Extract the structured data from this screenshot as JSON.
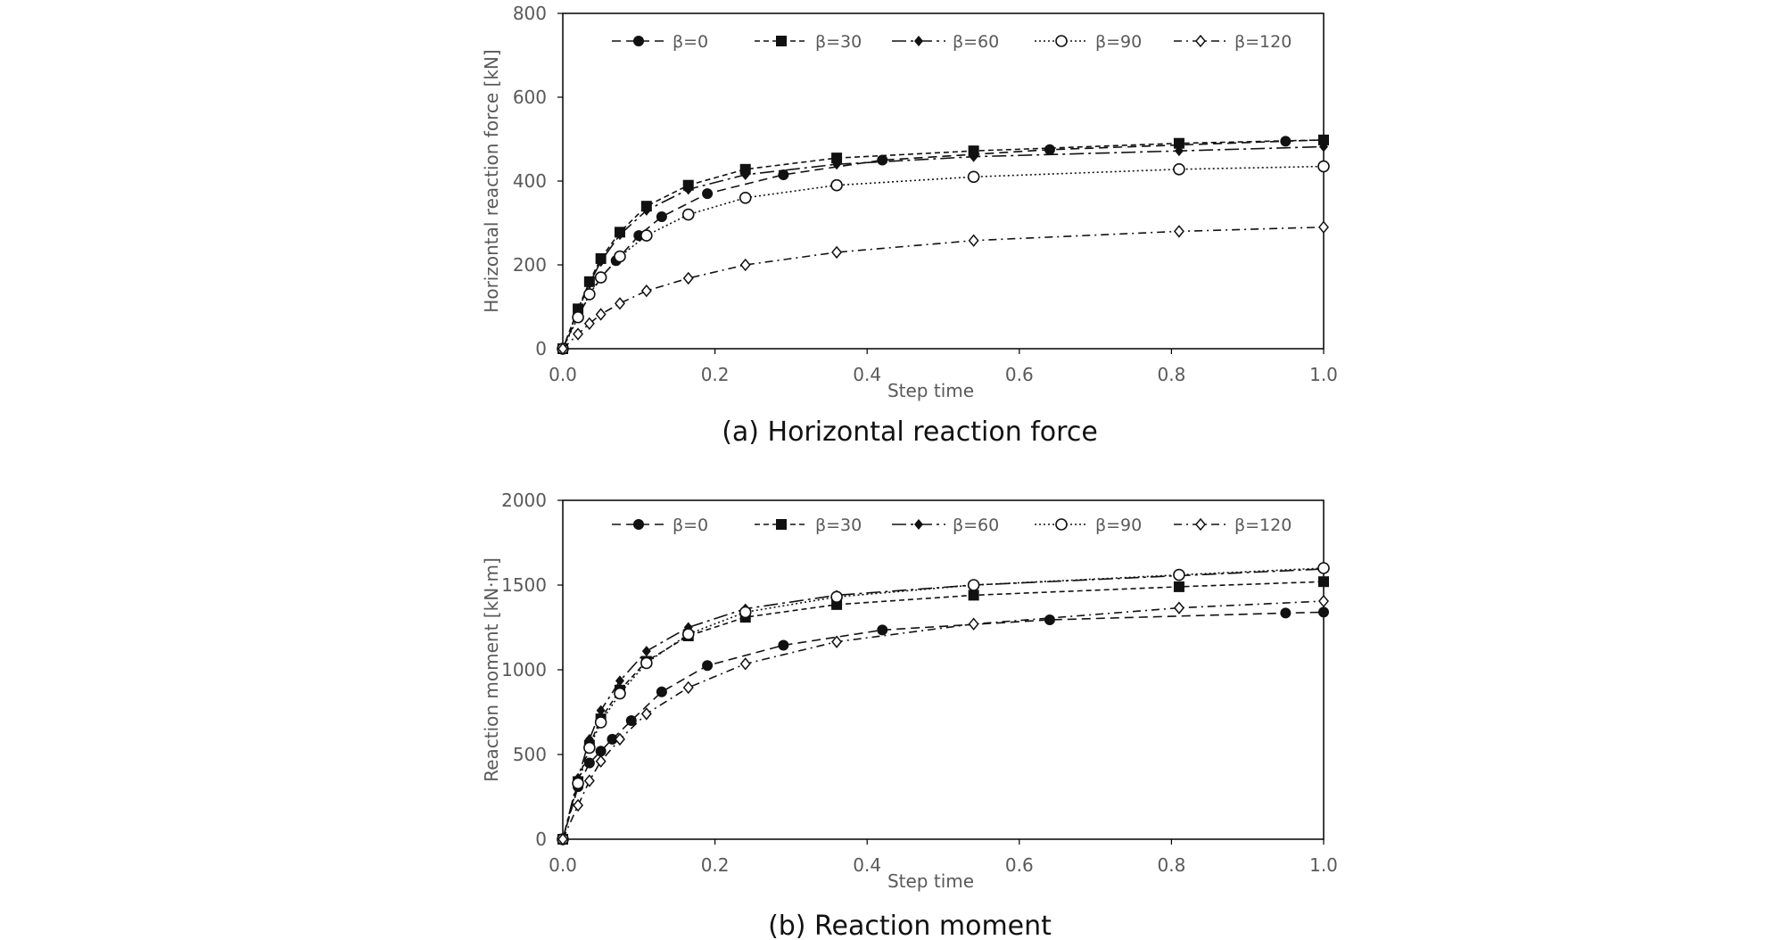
{
  "chart_data": [
    {
      "type": "line",
      "caption": "(a) Horizontal reaction force",
      "title": "",
      "xlabel": "Step time",
      "ylabel": "Horizontal reaction force [kN]",
      "xlim": [
        0,
        1.0
      ],
      "ylim": [
        0,
        800
      ],
      "x_ticks": [
        "0.0",
        "0.2",
        "0.4",
        "0.6",
        "0.8",
        "1.0"
      ],
      "y_ticks": [
        "0",
        "200",
        "400",
        "600",
        "800"
      ],
      "grid": false,
      "legend_position": "top",
      "series": [
        {
          "name": "β=0",
          "marker": "filled-circle",
          "dash": "dash",
          "x": [
            0,
            0.02,
            0.05,
            0.07,
            0.1,
            0.13,
            0.19,
            0.29,
            0.42,
            0.64,
            0.95,
            1.0
          ],
          "y": [
            0,
            80,
            170,
            210,
            270,
            315,
            370,
            415,
            450,
            475,
            495,
            498
          ]
        },
        {
          "name": "β=30",
          "marker": "filled-square",
          "dash": "dash-fine",
          "x": [
            0,
            0.02,
            0.035,
            0.05,
            0.075,
            0.11,
            0.165,
            0.24,
            0.36,
            0.54,
            0.81,
            1.0
          ],
          "y": [
            0,
            95,
            160,
            215,
            278,
            340,
            390,
            428,
            455,
            472,
            490,
            498
          ]
        },
        {
          "name": "β=60",
          "marker": "filled-diamond",
          "dash": "long-dash-dot",
          "x": [
            0,
            0.02,
            0.035,
            0.05,
            0.075,
            0.11,
            0.165,
            0.24,
            0.36,
            0.54,
            0.81,
            1.0
          ],
          "y": [
            0,
            92,
            155,
            208,
            272,
            330,
            380,
            415,
            440,
            458,
            472,
            482
          ]
        },
        {
          "name": "β=90",
          "marker": "open-circle",
          "dash": "dot",
          "x": [
            0,
            0.02,
            0.035,
            0.05,
            0.075,
            0.11,
            0.165,
            0.24,
            0.36,
            0.54,
            0.81,
            1.0
          ],
          "y": [
            0,
            75,
            130,
            170,
            220,
            270,
            320,
            360,
            390,
            410,
            428,
            435
          ]
        },
        {
          "name": "β=120",
          "marker": "open-diamond",
          "dash": "dash-dot",
          "x": [
            0,
            0.02,
            0.035,
            0.05,
            0.075,
            0.11,
            0.165,
            0.24,
            0.36,
            0.54,
            0.81,
            1.0
          ],
          "y": [
            0,
            35,
            60,
            82,
            108,
            138,
            168,
            200,
            230,
            258,
            280,
            290
          ]
        }
      ]
    },
    {
      "type": "line",
      "caption": "(b) Reaction moment",
      "title": "",
      "xlabel": "Step time",
      "ylabel": "Reaction moment [kN·m]",
      "xlim": [
        0,
        1.0
      ],
      "ylim": [
        0,
        2000
      ],
      "x_ticks": [
        "0.0",
        "0.2",
        "0.4",
        "0.6",
        "0.8",
        "1.0"
      ],
      "y_ticks": [
        "0",
        "500",
        "1000",
        "1500",
        "2000"
      ],
      "grid": false,
      "legend_position": "top",
      "series": [
        {
          "name": "β=0",
          "marker": "filled-circle",
          "dash": "dash",
          "x": [
            0,
            0.02,
            0.035,
            0.05,
            0.065,
            0.09,
            0.13,
            0.19,
            0.29,
            0.42,
            0.64,
            0.95,
            1.0
          ],
          "y": [
            0,
            310,
            450,
            520,
            590,
            700,
            870,
            1025,
            1145,
            1235,
            1295,
            1335,
            1340
          ]
        },
        {
          "name": "β=30",
          "marker": "filled-square",
          "dash": "dash-fine",
          "x": [
            0,
            0.02,
            0.035,
            0.05,
            0.075,
            0.11,
            0.165,
            0.24,
            0.36,
            0.54,
            0.81,
            1.0
          ],
          "y": [
            0,
            340,
            555,
            710,
            880,
            1050,
            1200,
            1310,
            1385,
            1440,
            1490,
            1520
          ]
        },
        {
          "name": "β=60",
          "marker": "filled-diamond",
          "dash": "long-dash-dot",
          "x": [
            0,
            0.02,
            0.035,
            0.05,
            0.075,
            0.11,
            0.165,
            0.24,
            0.36,
            0.54,
            0.81,
            1.0
          ],
          "y": [
            0,
            360,
            590,
            760,
            935,
            1110,
            1250,
            1360,
            1440,
            1500,
            1555,
            1595
          ]
        },
        {
          "name": "β=90",
          "marker": "open-circle",
          "dash": "dot",
          "x": [
            0,
            0.02,
            0.035,
            0.05,
            0.075,
            0.11,
            0.165,
            0.24,
            0.36,
            0.54,
            0.81,
            1.0
          ],
          "y": [
            0,
            330,
            540,
            690,
            860,
            1040,
            1210,
            1340,
            1430,
            1500,
            1560,
            1600
          ]
        },
        {
          "name": "β=120",
          "marker": "open-diamond",
          "dash": "dash-dot",
          "x": [
            0,
            0.02,
            0.035,
            0.05,
            0.075,
            0.11,
            0.165,
            0.24,
            0.36,
            0.54,
            0.81,
            1.0
          ],
          "y": [
            0,
            200,
            345,
            460,
            590,
            740,
            895,
            1035,
            1165,
            1270,
            1365,
            1405
          ]
        }
      ]
    }
  ]
}
